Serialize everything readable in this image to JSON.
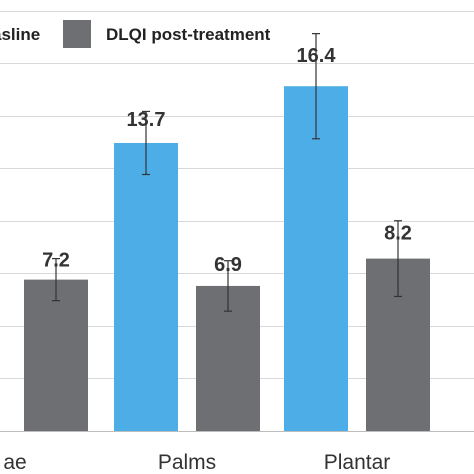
{
  "chart_data": {
    "type": "bar",
    "categories": [
      "ae",
      "Palms",
      "Plantar"
    ],
    "series": [
      {
        "name": "asline",
        "color": "#4daee7",
        "values": [
          null,
          13.7,
          16.4
        ],
        "errors": [
          null,
          1.5,
          2.5
        ],
        "labels": [
          "",
          "13.7",
          "16.4"
        ]
      },
      {
        "name": "DLQI post-treatment",
        "color": "#6e6f73",
        "values": [
          7.2,
          6.9,
          8.2
        ],
        "errors": [
          1.0,
          1.2,
          1.8
        ],
        "labels": [
          "7.2",
          "6.9",
          "8.2"
        ]
      }
    ],
    "ylim": [
      0,
      20.5
    ],
    "grid": true,
    "legend": "top"
  }
}
